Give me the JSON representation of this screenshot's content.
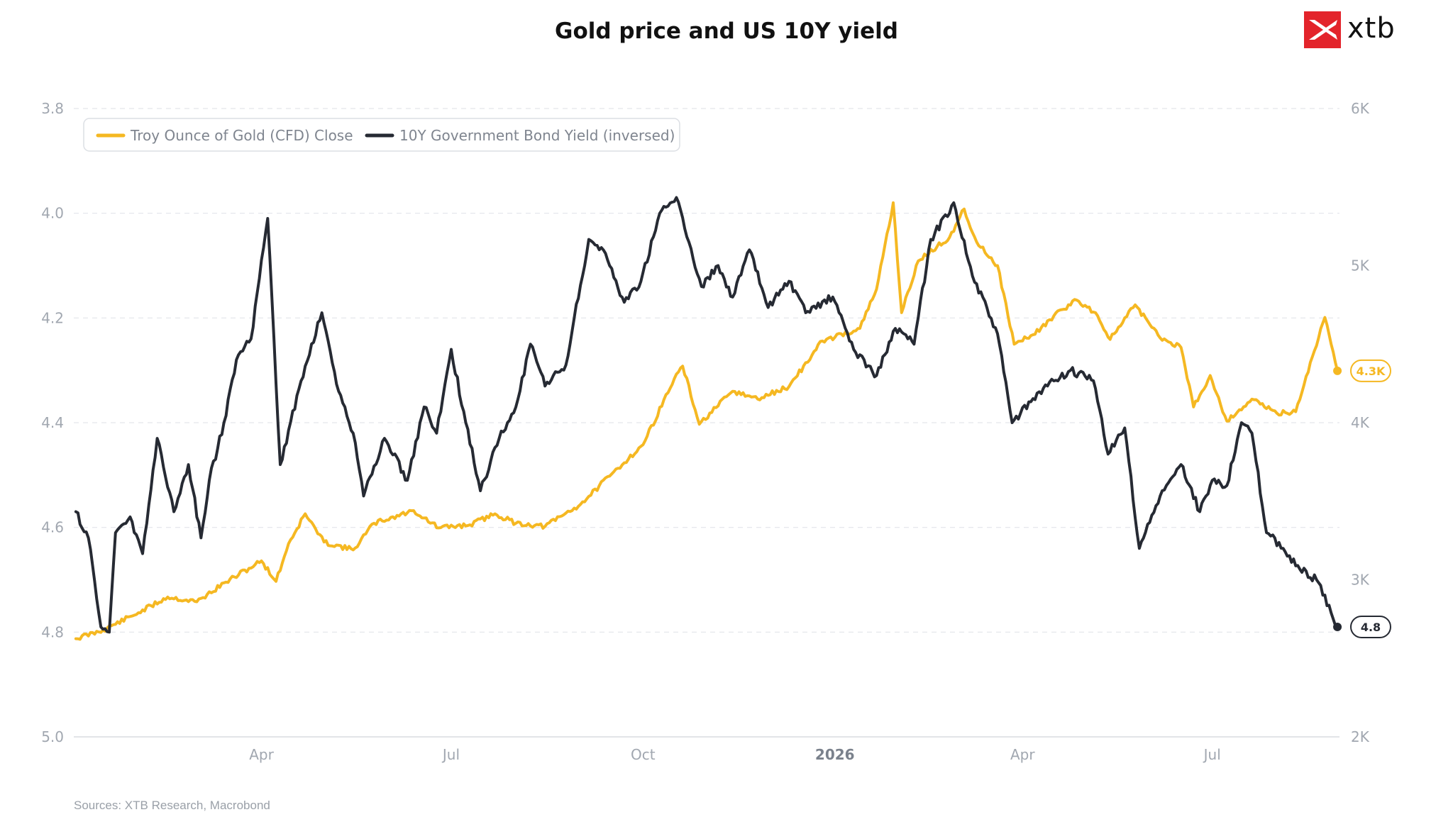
{
  "header": {
    "title": "Gold price and US 10Y yield"
  },
  "logo": {
    "text": "xtb",
    "brand_color": "#e3242b"
  },
  "footer": {
    "source": "Sources: XTB Research, Macrobond"
  },
  "chart_data": {
    "type": "line",
    "title": "Gold price and US 10Y yield",
    "x_axis": {
      "start": "2025-01-01",
      "end": "2026-08-31",
      "ticks": [
        {
          "date": "2025-04-01",
          "label": "Apr",
          "bold": false
        },
        {
          "date": "2025-07-01",
          "label": "Jul",
          "bold": false
        },
        {
          "date": "2025-10-01",
          "label": "Oct",
          "bold": false
        },
        {
          "date": "2026-01-01",
          "label": "2026",
          "bold": true
        },
        {
          "date": "2026-04-01",
          "label": "Apr",
          "bold": false
        },
        {
          "date": "2026-07-01",
          "label": "Jul",
          "bold": false
        }
      ]
    },
    "y_left": {
      "min": 3.8,
      "max": 5.0,
      "inverted": true,
      "ticks": [
        3.8,
        4.0,
        4.2,
        4.4,
        4.6,
        4.8,
        5.0
      ],
      "tick_labels": [
        "3.8",
        "4.0",
        "4.2",
        "4.4",
        "4.6",
        "4.8",
        "5.0"
      ]
    },
    "y_right": {
      "min": 2000,
      "max": 6000,
      "ticks": [
        2000,
        3000,
        4000,
        5000,
        6000
      ],
      "tick_labels": [
        "2K",
        "3K",
        "4K",
        "5K",
        "6K"
      ]
    },
    "grid": true,
    "legend": {
      "placement": "top-left"
    },
    "series": [
      {
        "name": "Troy Ounce of Gold (CFD) Close",
        "axis": "right",
        "color": "#f5b822",
        "end_label": "4.3K",
        "points": [
          [
            "2025-01-02",
            2625
          ],
          [
            "2025-01-15",
            2680
          ],
          [
            "2025-02-01",
            2790
          ],
          [
            "2025-02-15",
            2890
          ],
          [
            "2025-03-01",
            2860
          ],
          [
            "2025-03-15",
            2985
          ],
          [
            "2025-04-01",
            3120
          ],
          [
            "2025-04-08",
            2990
          ],
          [
            "2025-04-14",
            3230
          ],
          [
            "2025-04-22",
            3420
          ],
          [
            "2025-05-01",
            3240
          ],
          [
            "2025-05-15",
            3190
          ],
          [
            "2025-05-25",
            3360
          ],
          [
            "2025-06-13",
            3440
          ],
          [
            "2025-06-25",
            3330
          ],
          [
            "2025-07-10",
            3350
          ],
          [
            "2025-07-22",
            3420
          ],
          [
            "2025-08-01",
            3360
          ],
          [
            "2025-08-15",
            3340
          ],
          [
            "2025-09-01",
            3480
          ],
          [
            "2025-09-15",
            3660
          ],
          [
            "2025-10-01",
            3860
          ],
          [
            "2025-10-16",
            4280
          ],
          [
            "2025-10-20",
            4360
          ],
          [
            "2025-10-28",
            3990
          ],
          [
            "2025-11-13",
            4200
          ],
          [
            "2025-11-25",
            4150
          ],
          [
            "2025-12-10",
            4230
          ],
          [
            "2025-12-26",
            4520
          ],
          [
            "2026-01-13",
            4600
          ],
          [
            "2026-01-21",
            4850
          ],
          [
            "2026-01-29",
            5400
          ],
          [
            "2026-02-02",
            4700
          ],
          [
            "2026-02-10",
            5030
          ],
          [
            "2026-02-25",
            5180
          ],
          [
            "2026-03-04",
            5360
          ],
          [
            "2026-03-10",
            5150
          ],
          [
            "2026-03-20",
            5000
          ],
          [
            "2026-03-28",
            4500
          ],
          [
            "2026-04-06",
            4560
          ],
          [
            "2026-04-20",
            4720
          ],
          [
            "2026-04-27",
            4780
          ],
          [
            "2026-05-06",
            4700
          ],
          [
            "2026-05-13",
            4530
          ],
          [
            "2026-05-25",
            4750
          ],
          [
            "2026-06-06",
            4540
          ],
          [
            "2026-06-16",
            4480
          ],
          [
            "2026-06-22",
            4100
          ],
          [
            "2026-06-30",
            4300
          ],
          [
            "2026-07-08",
            4010
          ],
          [
            "2026-07-20",
            4150
          ],
          [
            "2026-08-01",
            4060
          ],
          [
            "2026-08-10",
            4070
          ],
          [
            "2026-08-18",
            4420
          ],
          [
            "2026-08-24",
            4670
          ],
          [
            "2026-08-30",
            4330
          ]
        ]
      },
      {
        "name": "10Y Government Bond Yield (inversed)",
        "axis": "left",
        "color": "#262a33",
        "end_label": "4.8",
        "points": [
          [
            "2025-01-02",
            4.57
          ],
          [
            "2025-01-08",
            4.62
          ],
          [
            "2025-01-14",
            4.79
          ],
          [
            "2025-01-18",
            4.8
          ],
          [
            "2025-01-21",
            4.61
          ],
          [
            "2025-01-28",
            4.58
          ],
          [
            "2025-02-03",
            4.65
          ],
          [
            "2025-02-10",
            4.43
          ],
          [
            "2025-02-18",
            4.57
          ],
          [
            "2025-02-25",
            4.48
          ],
          [
            "2025-03-03",
            4.62
          ],
          [
            "2025-03-07",
            4.51
          ],
          [
            "2025-03-14",
            4.4
          ],
          [
            "2025-03-20",
            4.28
          ],
          [
            "2025-03-27",
            4.24
          ],
          [
            "2025-04-04",
            4.01
          ],
          [
            "2025-04-10",
            4.48
          ],
          [
            "2025-04-20",
            4.32
          ],
          [
            "2025-04-30",
            4.19
          ],
          [
            "2025-05-08",
            4.34
          ],
          [
            "2025-05-15",
            4.42
          ],
          [
            "2025-05-20",
            4.54
          ],
          [
            "2025-05-30",
            4.43
          ],
          [
            "2025-06-10",
            4.51
          ],
          [
            "2025-06-18",
            4.37
          ],
          [
            "2025-06-24",
            4.42
          ],
          [
            "2025-07-01",
            4.26
          ],
          [
            "2025-07-08",
            4.4
          ],
          [
            "2025-07-15",
            4.53
          ],
          [
            "2025-07-24",
            4.43
          ],
          [
            "2025-08-01",
            4.37
          ],
          [
            "2025-08-08",
            4.25
          ],
          [
            "2025-08-15",
            4.33
          ],
          [
            "2025-08-25",
            4.29
          ],
          [
            "2025-09-05",
            4.05
          ],
          [
            "2025-09-12",
            4.07
          ],
          [
            "2025-09-22",
            4.17
          ],
          [
            "2025-09-30",
            4.13
          ],
          [
            "2025-10-09",
            4.0
          ],
          [
            "2025-10-17",
            3.97
          ],
          [
            "2025-10-29",
            4.14
          ],
          [
            "2025-11-06",
            4.1
          ],
          [
            "2025-11-13",
            4.16
          ],
          [
            "2025-11-21",
            4.07
          ],
          [
            "2025-11-30",
            4.18
          ],
          [
            "2025-12-10",
            4.13
          ],
          [
            "2025-12-18",
            4.19
          ],
          [
            "2025-12-31",
            4.16
          ],
          [
            "2026-01-10",
            4.26
          ],
          [
            "2026-01-21",
            4.31
          ],
          [
            "2026-01-30",
            4.22
          ],
          [
            "2026-02-08",
            4.25
          ],
          [
            "2026-02-16",
            4.05
          ],
          [
            "2026-02-27",
            3.98
          ],
          [
            "2026-03-08",
            4.12
          ],
          [
            "2026-03-20",
            4.23
          ],
          [
            "2026-03-27",
            4.4
          ],
          [
            "2026-04-05",
            4.36
          ],
          [
            "2026-04-13",
            4.33
          ],
          [
            "2026-04-24",
            4.3
          ],
          [
            "2026-05-05",
            4.32
          ],
          [
            "2026-05-12",
            4.46
          ],
          [
            "2026-05-20",
            4.41
          ],
          [
            "2026-05-27",
            4.64
          ],
          [
            "2026-06-06",
            4.54
          ],
          [
            "2026-06-16",
            4.48
          ],
          [
            "2026-06-25",
            4.57
          ],
          [
            "2026-07-01",
            4.51
          ],
          [
            "2026-07-08",
            4.52
          ],
          [
            "2026-07-15",
            4.4
          ],
          [
            "2026-07-20",
            4.42
          ],
          [
            "2026-07-27",
            4.61
          ],
          [
            "2026-08-04",
            4.64
          ],
          [
            "2026-08-12",
            4.68
          ],
          [
            "2026-08-20",
            4.7
          ],
          [
            "2026-08-30",
            4.79
          ]
        ]
      }
    ]
  }
}
